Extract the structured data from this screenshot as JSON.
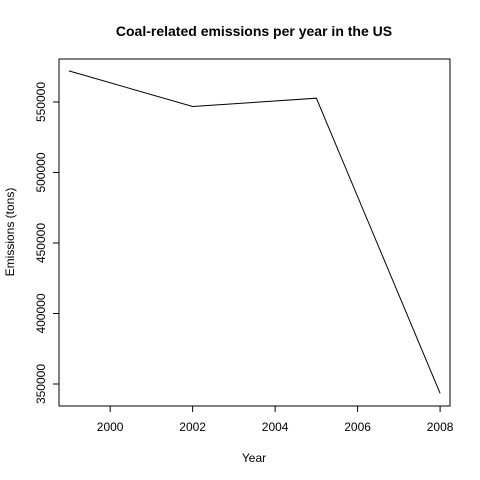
{
  "chart_data": {
    "type": "line",
    "title": "Coal-related emissions per year in the US",
    "xlabel": "Year",
    "ylabel": "Emissions (tons)",
    "x": [
      1999,
      2002,
      2005,
      2008
    ],
    "series": [
      {
        "values": [
          572100,
          546800,
          552700,
          343400
        ]
      }
    ],
    "xticks": [
      2000,
      2002,
      2004,
      2006,
      2008
    ],
    "yticks": [
      350000,
      400000,
      450000,
      500000,
      550000
    ],
    "xlim": [
      1998.76,
      2008.24
    ],
    "ylim": [
      334400,
      580500
    ],
    "grid": false,
    "line_color": "#000000"
  }
}
